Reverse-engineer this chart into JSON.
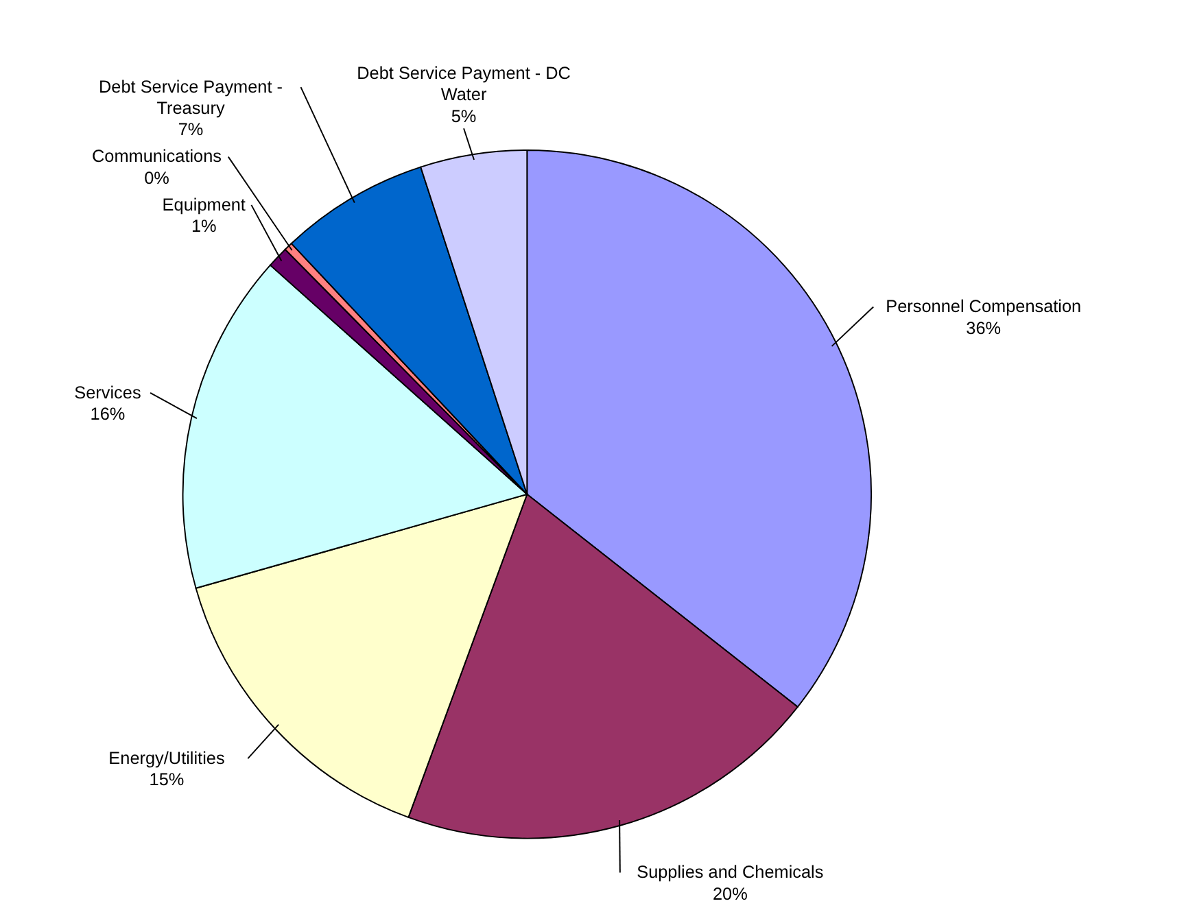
{
  "chart_data": {
    "type": "pie",
    "categories": [
      "Personnel Compensation",
      "Supplies and Chemicals",
      "Energy/Utilities",
      "Services",
      "Equipment",
      "Communications",
      "Debt Service Payment - Treasury",
      "Debt Service Payment - DC Water"
    ],
    "values": [
      35.6,
      20,
      15,
      16,
      1,
      0.4,
      7,
      5
    ],
    "value_labels": [
      "36%",
      "20%",
      "15%",
      "16%",
      "1%",
      "0%",
      "7%",
      "5%"
    ],
    "colors": [
      "#9999ff",
      "#993366",
      "#ffffcc",
      "#ccffff",
      "#660066",
      "#ff8080",
      "#0066cc",
      "#ccccff"
    ]
  }
}
